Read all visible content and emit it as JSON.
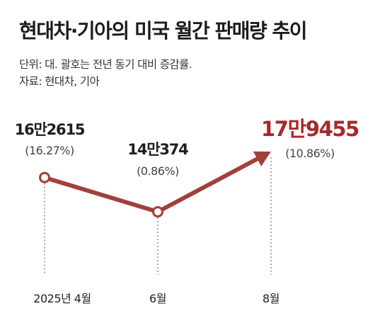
{
  "header": {
    "title": "현대차·기아의 미국 월간 판매량 추이",
    "unit_note": "단위: 대. 괄호는 전년 동기 대비 증감률.",
    "source_note": "자료: 현대차, 기아"
  },
  "colors": {
    "line": "#a0403d",
    "highlight": "#a52a2a",
    "marker_fill": "#ffffff"
  },
  "chart_data": {
    "type": "line",
    "title": "현대차·기아의 미국 월간 판매량 추이",
    "categories": [
      "2025년 4월",
      "6월",
      "8월"
    ],
    "values": [
      162615,
      140374,
      179455
    ],
    "value_labels": [
      "16만2615",
      "14만374",
      "17만9455"
    ],
    "change_labels": [
      "(16.27%)",
      "(0.86%)",
      "(10.86%)"
    ],
    "last_point_arrow": true,
    "highlight_last": true,
    "grid": false,
    "legend": "none"
  }
}
